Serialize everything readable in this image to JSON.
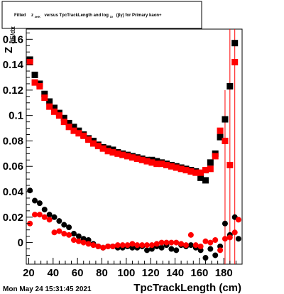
{
  "chart_data": {
    "type": "scatter",
    "title": "Fitted  z₄πₖ versus TpcTrackLength and log₁₀ (βγ) for Primary kaon+",
    "title_parts": {
      "fitted": "Fitted",
      "z": "z",
      "z_sub": "4πK",
      "versus": "versus TpcTrackLength and log",
      "log_sub": "10",
      "tail": "(βγ) for Primary kaon+"
    },
    "xlabel": "TpcTrackLength (cm)",
    "ylabel": "Z",
    "ylabel_sub": "dE/dx",
    "xlim": [
      18,
      195
    ],
    "ylim": [
      -0.017,
      0.168
    ],
    "x_ticks": [
      "20",
      "40",
      "60",
      "80",
      "100",
      "120",
      "140",
      "160",
      "180"
    ],
    "y_ticks": [
      "0",
      "0.02",
      "0.04",
      "0.06",
      "0.08",
      "0.1",
      "0.12",
      "0.14",
      "0.16"
    ],
    "grid": false,
    "timestamp": "Mon May 24 15:31:45 2021",
    "colors": {
      "black_series": "#000000",
      "red_series": "#ff0000"
    },
    "series": [
      {
        "marker": "square",
        "color": "#000000",
        "points": [
          {
            "x": 21,
            "y": 0.144
          },
          {
            "x": 25,
            "y": 0.132
          },
          {
            "x": 29,
            "y": 0.125
          },
          {
            "x": 33,
            "y": 0.117
          },
          {
            "x": 37,
            "y": 0.111
          },
          {
            "x": 41,
            "y": 0.106
          },
          {
            "x": 45,
            "y": 0.102
          },
          {
            "x": 49,
            "y": 0.098
          },
          {
            "x": 53,
            "y": 0.094
          },
          {
            "x": 57,
            "y": 0.091
          },
          {
            "x": 61,
            "y": 0.088
          },
          {
            "x": 65,
            "y": 0.085
          },
          {
            "x": 69,
            "y": 0.082
          },
          {
            "x": 73,
            "y": 0.08
          },
          {
            "x": 77,
            "y": 0.077
          },
          {
            "x": 81,
            "y": 0.075
          },
          {
            "x": 85,
            "y": 0.074
          },
          {
            "x": 89,
            "y": 0.073
          },
          {
            "x": 93,
            "y": 0.071
          },
          {
            "x": 97,
            "y": 0.07
          },
          {
            "x": 101,
            "y": 0.069
          },
          {
            "x": 105,
            "y": 0.068
          },
          {
            "x": 109,
            "y": 0.067
          },
          {
            "x": 113,
            "y": 0.066
          },
          {
            "x": 117,
            "y": 0.065
          },
          {
            "x": 121,
            "y": 0.065
          },
          {
            "x": 125,
            "y": 0.064
          },
          {
            "x": 129,
            "y": 0.063
          },
          {
            "x": 133,
            "y": 0.062
          },
          {
            "x": 137,
            "y": 0.061
          },
          {
            "x": 141,
            "y": 0.06
          },
          {
            "x": 145,
            "y": 0.059
          },
          {
            "x": 149,
            "y": 0.058
          },
          {
            "x": 153,
            "y": 0.057
          },
          {
            "x": 157,
            "y": 0.056
          },
          {
            "x": 161,
            "y": 0.051
          },
          {
            "x": 165,
            "y": 0.049
          },
          {
            "x": 169,
            "y": 0.063
          },
          {
            "x": 173,
            "y": 0.07
          },
          {
            "x": 177,
            "y": 0.083
          },
          {
            "x": 181,
            "y": 0.097
          },
          {
            "x": 185,
            "y": 0.123
          },
          {
            "x": 189,
            "y": 0.157
          }
        ]
      },
      {
        "marker": "square",
        "color": "#ff0000",
        "points": [
          {
            "x": 21,
            "y": 0.142
          },
          {
            "x": 25,
            "y": 0.126
          },
          {
            "x": 29,
            "y": 0.123
          },
          {
            "x": 33,
            "y": 0.114
          },
          {
            "x": 37,
            "y": 0.107
          },
          {
            "x": 41,
            "y": 0.103
          },
          {
            "x": 45,
            "y": 0.1
          },
          {
            "x": 49,
            "y": 0.095
          },
          {
            "x": 53,
            "y": 0.091
          },
          {
            "x": 57,
            "y": 0.088
          },
          {
            "x": 61,
            "y": 0.086
          },
          {
            "x": 65,
            "y": 0.084
          },
          {
            "x": 69,
            "y": 0.081
          },
          {
            "x": 73,
            "y": 0.078
          },
          {
            "x": 77,
            "y": 0.076
          },
          {
            "x": 81,
            "y": 0.074
          },
          {
            "x": 85,
            "y": 0.072
          },
          {
            "x": 89,
            "y": 0.071
          },
          {
            "x": 93,
            "y": 0.07
          },
          {
            "x": 97,
            "y": 0.069
          },
          {
            "x": 101,
            "y": 0.068
          },
          {
            "x": 105,
            "y": 0.067
          },
          {
            "x": 109,
            "y": 0.066
          },
          {
            "x": 113,
            "y": 0.065
          },
          {
            "x": 117,
            "y": 0.064
          },
          {
            "x": 121,
            "y": 0.063
          },
          {
            "x": 125,
            "y": 0.062
          },
          {
            "x": 129,
            "y": 0.062
          },
          {
            "x": 133,
            "y": 0.061
          },
          {
            "x": 137,
            "y": 0.06
          },
          {
            "x": 141,
            "y": 0.059
          },
          {
            "x": 145,
            "y": 0.058
          },
          {
            "x": 149,
            "y": 0.057
          },
          {
            "x": 153,
            "y": 0.056
          },
          {
            "x": 157,
            "y": 0.055
          },
          {
            "x": 161,
            "y": 0.055
          },
          {
            "x": 165,
            "y": 0.057
          },
          {
            "x": 169,
            "y": 0.058
          },
          {
            "x": 173,
            "y": 0.068
          },
          {
            "x": 177,
            "y": 0.088
          },
          {
            "x": 181,
            "y": 0.08
          },
          {
            "x": 185,
            "y": 0.061
          },
          {
            "x": 189,
            "y": 0.142
          }
        ]
      },
      {
        "marker": "circle",
        "color": "#000000",
        "points": [
          {
            "x": 21,
            "y": 0.041
          },
          {
            "x": 25,
            "y": 0.033
          },
          {
            "x": 29,
            "y": 0.031
          },
          {
            "x": 33,
            "y": 0.026
          },
          {
            "x": 37,
            "y": 0.022
          },
          {
            "x": 41,
            "y": 0.02
          },
          {
            "x": 45,
            "y": 0.017
          },
          {
            "x": 49,
            "y": 0.014
          },
          {
            "x": 53,
            "y": 0.012
          },
          {
            "x": 57,
            "y": 0.007
          },
          {
            "x": 61,
            "y": 0.005
          },
          {
            "x": 65,
            "y": 0.003
          },
          {
            "x": 69,
            "y": 0.002
          },
          {
            "x": 73,
            "y": -0.001
          },
          {
            "x": 77,
            "y": -0.003
          },
          {
            "x": 81,
            "y": -0.004
          },
          {
            "x": 85,
            "y": -0.003
          },
          {
            "x": 89,
            "y": -0.003
          },
          {
            "x": 93,
            "y": -0.004
          },
          {
            "x": 97,
            "y": -0.004
          },
          {
            "x": 101,
            "y": -0.003
          },
          {
            "x": 105,
            "y": -0.004
          },
          {
            "x": 109,
            "y": -0.004
          },
          {
            "x": 113,
            "y": -0.003
          },
          {
            "x": 117,
            "y": -0.006
          },
          {
            "x": 121,
            "y": -0.005
          },
          {
            "x": 125,
            "y": -0.003
          },
          {
            "x": 129,
            "y": -0.004
          },
          {
            "x": 133,
            "y": -0.002
          },
          {
            "x": 137,
            "y": -0.005
          },
          {
            "x": 141,
            "y": -0.006
          },
          {
            "x": 145,
            "y": -0.002
          },
          {
            "x": 149,
            "y": -0.003
          },
          {
            "x": 153,
            "y": -0.002
          },
          {
            "x": 157,
            "y": -0.004
          },
          {
            "x": 161,
            "y": -0.006
          },
          {
            "x": 165,
            "y": -0.012
          },
          {
            "x": 169,
            "y": -0.005
          },
          {
            "x": 173,
            "y": -0.01
          },
          {
            "x": 177,
            "y": -0.003
          },
          {
            "x": 181,
            "y": 0.015
          },
          {
            "x": 185,
            "y": 0.006
          },
          {
            "x": 189,
            "y": 0.02
          },
          {
            "x": 192,
            "y": 0.003
          }
        ]
      },
      {
        "marker": "circle",
        "color": "#ff0000",
        "points": [
          {
            "x": 21,
            "y": 0.015
          },
          {
            "x": 25,
            "y": 0.022
          },
          {
            "x": 29,
            "y": 0.022
          },
          {
            "x": 33,
            "y": 0.02
          },
          {
            "x": 37,
            "y": 0.018
          },
          {
            "x": 41,
            "y": 0.008
          },
          {
            "x": 45,
            "y": 0.009
          },
          {
            "x": 49,
            "y": 0.007
          },
          {
            "x": 53,
            "y": 0.006
          },
          {
            "x": 57,
            "y": 0.002
          },
          {
            "x": 61,
            "y": 0.001
          },
          {
            "x": 65,
            "y": 0.0
          },
          {
            "x": 69,
            "y": -0.001
          },
          {
            "x": 73,
            "y": -0.002
          },
          {
            "x": 77,
            "y": -0.003
          },
          {
            "x": 81,
            "y": -0.004
          },
          {
            "x": 85,
            "y": -0.003
          },
          {
            "x": 89,
            "y": -0.003
          },
          {
            "x": 93,
            "y": -0.002
          },
          {
            "x": 97,
            "y": -0.002
          },
          {
            "x": 101,
            "y": -0.002
          },
          {
            "x": 105,
            "y": -0.001
          },
          {
            "x": 109,
            "y": -0.002
          },
          {
            "x": 113,
            "y": -0.002
          },
          {
            "x": 117,
            "y": -0.002
          },
          {
            "x": 121,
            "y": -0.002
          },
          {
            "x": 125,
            "y": -0.001
          },
          {
            "x": 129,
            "y": 0.0
          },
          {
            "x": 133,
            "y": 0.0
          },
          {
            "x": 137,
            "y": 0.0
          },
          {
            "x": 141,
            "y": 0.0
          },
          {
            "x": 145,
            "y": -0.001
          },
          {
            "x": 149,
            "y": -0.002
          },
          {
            "x": 153,
            "y": 0.006
          },
          {
            "x": 157,
            "y": -0.002
          },
          {
            "x": 161,
            "y": -0.003
          },
          {
            "x": 165,
            "y": 0.001
          },
          {
            "x": 169,
            "y": 0.0
          },
          {
            "x": 173,
            "y": 0.002
          },
          {
            "x": 177,
            "y": -0.006
          },
          {
            "x": 181,
            "y": 0.003
          },
          {
            "x": 185,
            "y": 0.004
          },
          {
            "x": 189,
            "y": 0.008
          },
          {
            "x": 192,
            "y": 0.018
          }
        ]
      }
    ],
    "error_bars": {
      "color": "#ff0000",
      "bars": [
        {
          "x": 181,
          "y_low": -0.017,
          "y_high": 0.12
        },
        {
          "x": 185,
          "y_low": -0.017,
          "y_high": 0.168
        },
        {
          "x": 189,
          "y_low": -0.017,
          "y_high": 0.168
        }
      ]
    }
  }
}
